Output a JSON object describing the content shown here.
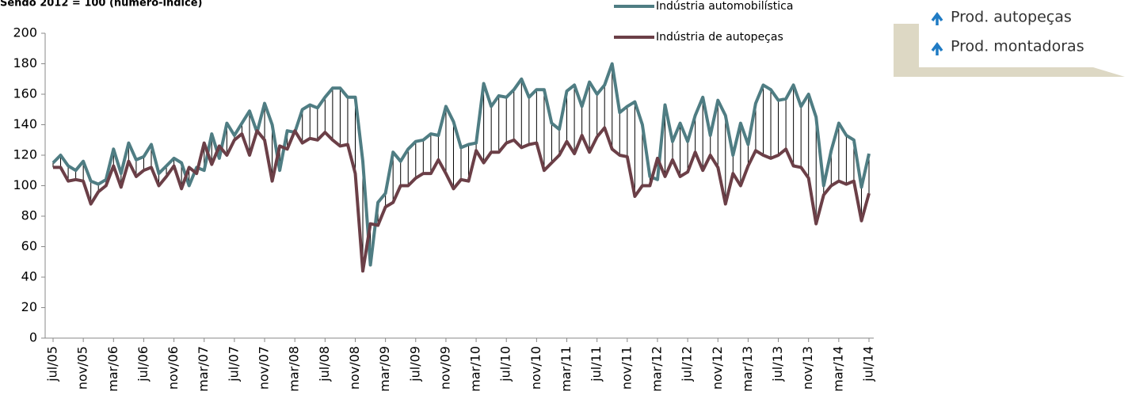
{
  "chart_data": {
    "type": "line",
    "title": "Sendo 2012 = 100 (número-índice)",
    "annotations": [
      "Prod. autopeças",
      "Prod. montadoras"
    ],
    "categories": [
      "jul/05",
      null,
      null,
      null,
      "nov/05",
      null,
      null,
      null,
      "mar/06",
      null,
      null,
      null,
      "jul/06",
      null,
      null,
      null,
      "nov/06",
      null,
      null,
      null,
      "mar/07",
      null,
      null,
      null,
      "jul/07",
      null,
      null,
      null,
      "nov/07",
      null,
      null,
      null,
      "mar/08",
      null,
      null,
      null,
      "jul/08",
      null,
      null,
      null,
      "nov/08",
      null,
      null,
      null,
      "mar/09",
      null,
      null,
      null,
      "jul/09",
      null,
      null,
      null,
      "nov/09",
      null,
      null,
      null,
      "mar/10",
      null,
      null,
      null,
      "jul/10",
      null,
      null,
      null,
      "nov/10",
      null,
      null,
      null,
      "mar/11",
      null,
      null,
      null,
      "jul/11",
      null,
      null,
      null,
      "nov/11",
      null,
      null,
      null,
      "mar/12",
      null,
      null,
      null,
      "jul/12",
      null,
      null,
      null,
      "nov/12",
      null,
      null,
      null,
      "mar/13",
      null,
      null,
      null,
      "jul/13",
      null,
      null,
      null,
      "nov/13",
      null,
      null,
      null,
      "mar/14",
      null,
      null,
      null,
      "jul/14"
    ],
    "series": [
      {
        "name": "Indústria automobilística",
        "color": "#4f7d83",
        "values": [
          115,
          120,
          113,
          110,
          116,
          103,
          101,
          104,
          124,
          108,
          128,
          117,
          119,
          127,
          108,
          113,
          118,
          115,
          100,
          112,
          110,
          134,
          118,
          141,
          133,
          141,
          149,
          135,
          154,
          140,
          110,
          136,
          135,
          150,
          153,
          151,
          158,
          164,
          164,
          158,
          158,
          116,
          48,
          89,
          95,
          122,
          116,
          124,
          129,
          130,
          134,
          133,
          152,
          142,
          125,
          127,
          128,
          167,
          152,
          159,
          158,
          163,
          170,
          158,
          163,
          163,
          141,
          137,
          162,
          166,
          152,
          168,
          160,
          166,
          180,
          148,
          152,
          155,
          140,
          106,
          104,
          153,
          129,
          141,
          129,
          146,
          158,
          133,
          156,
          146,
          120,
          141,
          127,
          154,
          166,
          163,
          156,
          157,
          166,
          152,
          160,
          145,
          100,
          123,
          141,
          133,
          130,
          99,
          121
        ]
      },
      {
        "name": "Indústria de autopeças",
        "color": "#6b3f47",
        "values": [
          112,
          112,
          103,
          104,
          103,
          88,
          96,
          100,
          113,
          99,
          116,
          106,
          110,
          112,
          100,
          106,
          113,
          98,
          112,
          108,
          128,
          114,
          126,
          120,
          130,
          134,
          120,
          136,
          130,
          103,
          126,
          124,
          136,
          128,
          131,
          130,
          135,
          130,
          126,
          127,
          108,
          44,
          75,
          74,
          86,
          89,
          100,
          100,
          105,
          108,
          108,
          117,
          108,
          98,
          104,
          103,
          123,
          115,
          122,
          122,
          128,
          130,
          125,
          127,
          128,
          110,
          115,
          120,
          129,
          121,
          133,
          122,
          132,
          138,
          124,
          120,
          119,
          93,
          100,
          100,
          118,
          106,
          117,
          106,
          109,
          122,
          110,
          120,
          112,
          88,
          108,
          100,
          113,
          123,
          120,
          118,
          120,
          124,
          113,
          112,
          105,
          75,
          94,
          100,
          103,
          101,
          103,
          77,
          95
        ]
      }
    ],
    "ylim": [
      0,
      200
    ],
    "yticks": [
      0,
      20,
      40,
      60,
      80,
      100,
      120,
      140,
      160,
      180,
      200
    ],
    "grid": false
  }
}
